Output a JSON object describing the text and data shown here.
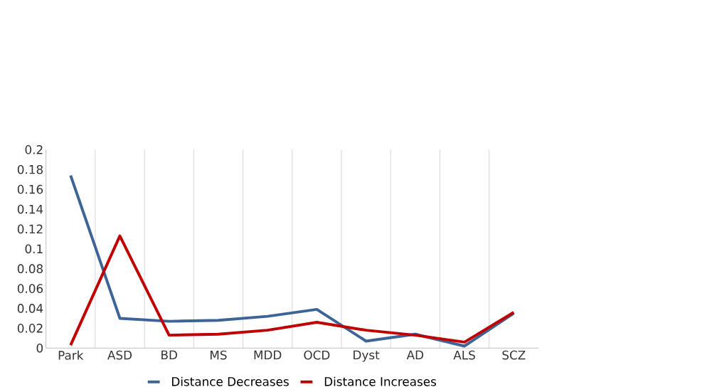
{
  "chart_data": {
    "type": "line",
    "categories": [
      "Park",
      "ASD",
      "BD",
      "MS",
      "MDD",
      "OCD",
      "Dyst",
      "AD",
      "ALS",
      "SCZ"
    ],
    "series": [
      {
        "name": "Distance Decreases",
        "color": "#3c6497",
        "values": [
          0.174,
          0.03,
          0.027,
          0.028,
          0.032,
          0.039,
          0.007,
          0.014,
          0.002,
          0.035
        ]
      },
      {
        "name": "Distance Increases",
        "color": "#c00000",
        "values": [
          0.003,
          0.113,
          0.013,
          0.014,
          0.018,
          0.026,
          0.018,
          0.013,
          0.006,
          0.036
        ]
      }
    ],
    "ylim": [
      0,
      0.2
    ],
    "yticks": [
      0,
      0.02,
      0.04,
      0.06,
      0.08,
      0.1,
      0.12,
      0.14,
      0.16,
      0.18,
      0.2
    ],
    "grid": "x",
    "legend": "bottom",
    "marker": "none",
    "line_style": "solid"
  }
}
